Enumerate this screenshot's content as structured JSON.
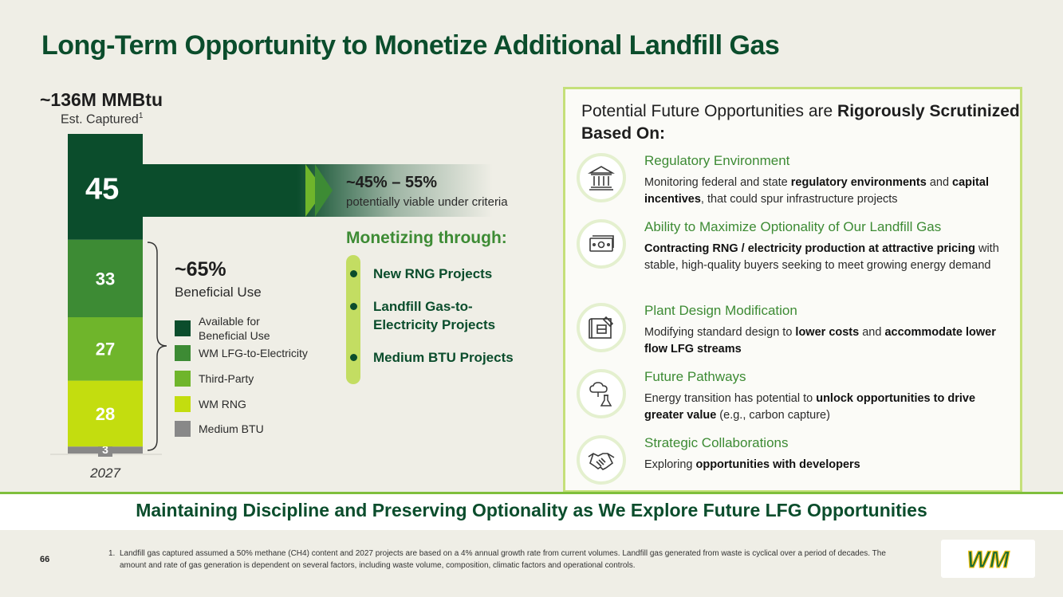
{
  "title": "Long-Term Opportunity to Monetize Additional Landfill Gas",
  "total": {
    "value": "~136M MMBtu",
    "subtitle": "Est. Captured",
    "footnote_mark": "1"
  },
  "arrow": {
    "range": "~45% – 55%",
    "subtitle": "potentially viable under criteria"
  },
  "beneficial": {
    "pct": "~65%",
    "label": "Beneficial Use"
  },
  "legend": [
    {
      "label": "Available for Beneficial Use",
      "color": "#0b4d2c"
    },
    {
      "label": "WM LFG-to-Electricity",
      "color": "#3d8b34"
    },
    {
      "label": "Third-Party",
      "color": "#6fb52b"
    },
    {
      "label": "WM RNG",
      "color": "#c3dd0f"
    },
    {
      "label": "Medium BTU",
      "color": "#888888"
    }
  ],
  "chart_data": {
    "type": "bar",
    "stacked": true,
    "categories": [
      "2027"
    ],
    "series": [
      {
        "name": "Medium BTU",
        "values": [
          3
        ],
        "color": "#888888"
      },
      {
        "name": "WM RNG",
        "values": [
          28
        ],
        "color": "#c3dd0f"
      },
      {
        "name": "Third-Party",
        "values": [
          27
        ],
        "color": "#6fb52b"
      },
      {
        "name": "WM LFG-to-Electricity",
        "values": [
          33
        ],
        "color": "#3d8b34"
      },
      {
        "name": "Available for Beneficial Use",
        "values": [
          45
        ],
        "color": "#0b4d2c"
      }
    ],
    "total": 136
  },
  "monetizing": {
    "title": "Monetizing through:",
    "items": [
      "New RNG Projects",
      "Landfill Gas-to-Electricity Projects",
      "Medium BTU Projects"
    ]
  },
  "panel": {
    "heading_plain": "Potential Future Opportunities are",
    "heading_bold": "Rigorously Scrutinized Based On:",
    "items": [
      {
        "icon": "bank-icon",
        "title": "Regulatory Environment",
        "desc": [
          {
            "t": "Monitoring federal and state "
          },
          {
            "t": "regulatory environments",
            "b": true
          },
          {
            "t": " and "
          },
          {
            "t": "capital incentives",
            "b": true
          },
          {
            "t": ", that could spur infrastructure projects"
          }
        ]
      },
      {
        "icon": "cash-icon",
        "title": "Ability to Maximize Optionality of Our Landfill Gas",
        "desc": [
          {
            "t": "Contracting RNG / electricity production at attractive pricing",
            "b": true
          },
          {
            "t": " with stable, high-quality buyers seeking to meet growing energy demand"
          }
        ]
      },
      {
        "icon": "blueprint-icon",
        "title": "Plant Design Modification",
        "desc": [
          {
            "t": "Modifying standard design to "
          },
          {
            "t": "lower costs",
            "b": true
          },
          {
            "t": " and "
          },
          {
            "t": "accommodate lower flow LFG streams",
            "b": true
          }
        ]
      },
      {
        "icon": "carbon-capture-icon",
        "title": "Future Pathways",
        "desc": [
          {
            "t": "Energy transition has potential to "
          },
          {
            "t": "unlock opportunities to drive greater value",
            "b": true
          },
          {
            "t": " (e.g., carbon capture)"
          }
        ]
      },
      {
        "icon": "handshake-icon",
        "title": "Strategic Collaborations",
        "desc": [
          {
            "t": "Exploring "
          },
          {
            "t": "opportunities with developers",
            "b": true
          }
        ]
      }
    ]
  },
  "bottom_banner": "Maintaining Discipline and Preserving Optionality as We Explore Future LFG Opportunities",
  "page_number": "66",
  "footnote": {
    "num": "1.",
    "text": "Landfill gas captured assumed a 50% methane (CH4) content and 2027 projects are based on a 4% annual growth rate from current volumes. Landfill gas generated from waste is cyclical over a period of decades. The amount and rate of gas generation is dependent on several factors, including waste volume, composition, climatic factors and operational controls."
  },
  "logo_text": "WM"
}
